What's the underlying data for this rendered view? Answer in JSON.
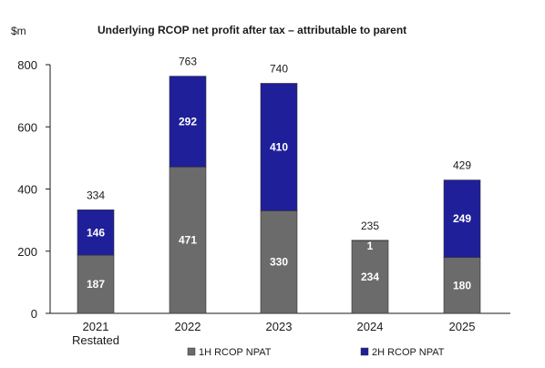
{
  "chart_data": {
    "type": "bar",
    "stacked": true,
    "title": "Underlying RCOP net profit after tax – attributable to parent",
    "unit_label": "$m",
    "categories": [
      [
        "2021",
        "Restated"
      ],
      [
        "2022"
      ],
      [
        "2023"
      ],
      [
        "2024"
      ],
      [
        "2025"
      ]
    ],
    "series": [
      {
        "name": "1H RCOP NPAT",
        "color": "#6b6b6b",
        "values": [
          187,
          471,
          330,
          234,
          180
        ]
      },
      {
        "name": "2H RCOP NPAT",
        "color": "#1f1f9a",
        "values": [
          146,
          292,
          410,
          1,
          249
        ]
      }
    ],
    "totals": [
      334,
      763,
      740,
      235,
      429
    ],
    "ylim": [
      0,
      800
    ],
    "yticks": [
      0,
      200,
      400,
      600,
      800
    ],
    "grid": false,
    "legend_position": "bottom"
  }
}
